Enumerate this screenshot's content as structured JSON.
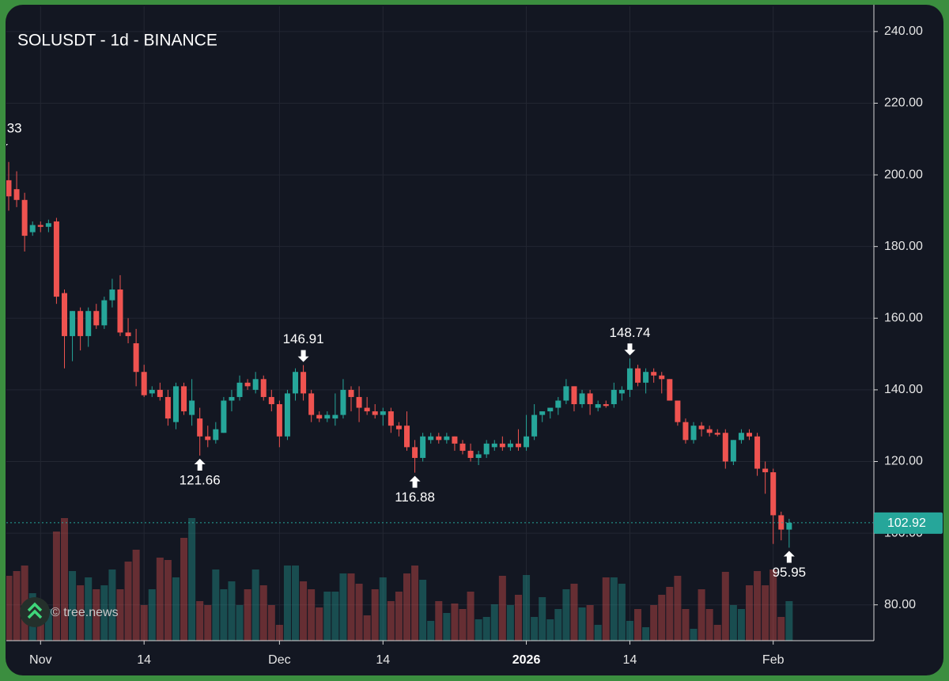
{
  "chart_data": {
    "type": "candlestick",
    "title": "SOLUSDT - 1d - BINANCE",
    "watermark": "© tree.news",
    "x": [
      "2025-10-28",
      "2025-10-29",
      "2025-10-30",
      "2025-10-31",
      "2025-11-01",
      "2025-11-02",
      "2025-11-03",
      "2025-11-04",
      "2025-11-05",
      "2025-11-06",
      "2025-11-07",
      "2025-11-08",
      "2025-11-09",
      "2025-11-10",
      "2025-11-11",
      "2025-11-12",
      "2025-11-13",
      "2025-11-14",
      "2025-11-15",
      "2025-11-16",
      "2025-11-17",
      "2025-11-18",
      "2025-11-19",
      "2025-11-20",
      "2025-11-21",
      "2025-11-22",
      "2025-11-23",
      "2025-11-24",
      "2025-11-25",
      "2025-11-26",
      "2025-11-27",
      "2025-11-28",
      "2025-11-29",
      "2025-11-30",
      "2025-12-01",
      "2025-12-02",
      "2025-12-03",
      "2025-12-04",
      "2025-12-05",
      "2025-12-06",
      "2025-12-07",
      "2025-12-08",
      "2025-12-09",
      "2025-12-10",
      "2025-12-11",
      "2025-12-12",
      "2025-12-13",
      "2025-12-14",
      "2025-12-15",
      "2025-12-16",
      "2025-12-17",
      "2025-12-18",
      "2025-12-19",
      "2025-12-20",
      "2025-12-21",
      "2025-12-22",
      "2025-12-23",
      "2025-12-24",
      "2025-12-25",
      "2025-12-26",
      "2025-12-27",
      "2025-12-28",
      "2025-12-29",
      "2025-12-30",
      "2025-12-31",
      "2026-01-01",
      "2026-01-02",
      "2026-01-03",
      "2026-01-04",
      "2026-01-05",
      "2026-01-06",
      "2026-01-07",
      "2026-01-08",
      "2026-01-09",
      "2026-01-10",
      "2026-01-11",
      "2026-01-12",
      "2026-01-13",
      "2026-01-14",
      "2026-01-15",
      "2026-01-16",
      "2026-01-17",
      "2026-01-18",
      "2026-01-19",
      "2026-01-20",
      "2026-01-21",
      "2026-01-22",
      "2026-01-23",
      "2026-01-24",
      "2026-01-25",
      "2026-01-26",
      "2026-01-27",
      "2026-01-28",
      "2026-01-29",
      "2026-01-30",
      "2026-01-31",
      "2026-02-01",
      "2026-02-02",
      "2026-02-03"
    ],
    "open": [
      198.5,
      196,
      193,
      184,
      186,
      185.5,
      187,
      167,
      155,
      162,
      155,
      162,
      158,
      165,
      168,
      156,
      153,
      145,
      139,
      140,
      138,
      131,
      141,
      133,
      132,
      127,
      126,
      128,
      137,
      138,
      142,
      140,
      143,
      138,
      136,
      127,
      139,
      145,
      139,
      133,
      132,
      132,
      133,
      140,
      138,
      135,
      134,
      133,
      134,
      130,
      130,
      124,
      121,
      126,
      127,
      126,
      127,
      125,
      123,
      121,
      122,
      124,
      125,
      124,
      125,
      124,
      127,
      133,
      134,
      135,
      137,
      141,
      136,
      139,
      135,
      136,
      136,
      139,
      140,
      146,
      142,
      145,
      144,
      143,
      137,
      131,
      126,
      130,
      129,
      128,
      128,
      120,
      126,
      128,
      127,
      118,
      117,
      105,
      101
    ],
    "high": [
      203.6,
      201,
      195,
      187,
      187,
      187.5,
      188,
      168,
      162,
      163,
      163,
      164,
      166,
      171,
      172,
      160,
      157,
      147,
      141,
      142,
      140,
      142,
      142,
      143,
      135,
      130,
      131,
      138,
      140,
      144,
      143,
      145,
      144,
      140,
      137,
      140,
      146,
      146.91,
      140,
      134,
      134,
      139,
      143,
      141,
      141,
      138,
      136,
      135,
      135,
      131,
      134,
      126,
      128,
      128,
      128,
      128,
      127,
      126,
      125,
      123,
      126,
      126,
      127,
      126,
      129,
      133,
      136,
      134,
      135,
      138,
      143,
      141,
      140,
      140,
      137,
      137,
      142,
      141,
      148.74,
      147,
      146,
      146,
      145,
      143,
      137,
      132,
      131,
      131,
      130,
      129,
      129,
      126,
      129,
      129,
      128,
      120,
      118,
      106,
      104
    ],
    "low": [
      190,
      191,
      178.6,
      183,
      184,
      184,
      164,
      146,
      148,
      151,
      152,
      157,
      157,
      163,
      155,
      153,
      141,
      138,
      138,
      137,
      130,
      129,
      133,
      130,
      121.66,
      124,
      125,
      128,
      134,
      137,
      140,
      139,
      137,
      134,
      124,
      126,
      137,
      137,
      131,
      131,
      131,
      130,
      132,
      134,
      131,
      133,
      132,
      130,
      128,
      127,
      123,
      116.88,
      120,
      125,
      125,
      125,
      123,
      122,
      120,
      119,
      121,
      123,
      123,
      123,
      123,
      123,
      126,
      131,
      132,
      133,
      136,
      134,
      135,
      133,
      134,
      135,
      135,
      137,
      138,
      141,
      139,
      142,
      139,
      137,
      130,
      125,
      125,
      127,
      127,
      127,
      118,
      119,
      125,
      126,
      116,
      111,
      97,
      98,
      95.95
    ],
    "close": [
      194,
      193,
      183,
      186,
      185.5,
      186.5,
      166,
      155,
      162,
      155,
      162,
      158,
      165,
      168,
      156,
      155,
      145,
      138.5,
      140,
      138,
      132,
      141,
      134,
      137,
      127,
      126,
      129,
      137,
      138,
      142,
      141,
      143,
      138,
      136,
      127,
      139,
      145,
      139,
      133,
      132,
      133,
      133,
      140,
      138,
      135,
      134,
      133,
      134,
      130,
      129,
      124,
      121,
      127,
      127,
      126,
      127,
      125,
      123,
      121,
      122,
      125,
      125,
      124,
      125,
      124,
      127,
      133,
      134,
      135,
      137,
      141,
      136,
      139,
      136,
      136,
      135.5,
      140,
      140,
      146,
      142,
      145,
      144,
      143,
      137,
      131,
      126,
      130,
      129,
      128,
      127.5,
      120,
      126,
      128,
      127,
      118,
      117,
      105,
      101,
      102.92
    ],
    "volume": [
      82,
      88,
      95,
      60,
      25,
      40,
      138,
      155,
      88,
      70,
      80,
      65,
      70,
      90,
      65,
      100,
      115,
      45,
      65,
      105,
      102,
      80,
      130,
      155,
      50,
      45,
      90,
      65,
      75,
      45,
      65,
      90,
      70,
      45,
      20,
      95,
      95,
      75,
      65,
      42,
      62,
      62,
      85,
      85,
      72,
      32,
      65,
      80,
      50,
      62,
      85,
      95,
      77,
      25,
      50,
      35,
      47,
      40,
      62,
      27,
      30,
      46,
      82,
      45,
      58,
      83,
      30,
      55,
      27,
      40,
      65,
      72,
      42,
      45,
      20,
      80,
      80,
      72,
      25,
      40,
      17,
      45,
      58,
      68,
      82,
      40,
      15,
      65,
      40,
      20,
      87,
      45,
      40,
      70,
      88,
      70,
      90,
      30,
      50
    ],
    "up_color": "#26a69a",
    "down_color": "#ef5350",
    "last_price_color": "#26a69a",
    "ylim": [
      70,
      248.8
    ],
    "yticks": [
      {
        "value": 80,
        "label": "80.00"
      },
      {
        "value": 100,
        "label": "100.00"
      },
      {
        "value": 120,
        "label": "120.00"
      },
      {
        "value": 140,
        "label": "140.00"
      },
      {
        "value": 160,
        "label": "160.00"
      },
      {
        "value": 180,
        "label": "180.00"
      },
      {
        "value": 200,
        "label": "200.00"
      },
      {
        "value": 220,
        "label": "220.00"
      },
      {
        "value": 240,
        "label": "240.00"
      }
    ],
    "xticks": [
      {
        "value": "2025-11-01",
        "label": "Nov"
      },
      {
        "value": "2025-11-14",
        "label": "14"
      },
      {
        "value": "2025-12-01",
        "label": "Dec"
      },
      {
        "value": "2025-12-14",
        "label": "14"
      },
      {
        "value": "2026-01-01",
        "label": "2026"
      },
      {
        "value": "2026-01-14",
        "label": "14"
      },
      {
        "value": "2026-02-01",
        "label": "Feb"
      }
    ],
    "grid": true,
    "annotations": {
      "highs": [
        "2025-12-04",
        "2026-01-14"
      ],
      "lows": [
        "2025-11-21",
        "2025-12-18",
        "2026-02-03"
      ],
      "cut_label": ".33"
    }
  }
}
